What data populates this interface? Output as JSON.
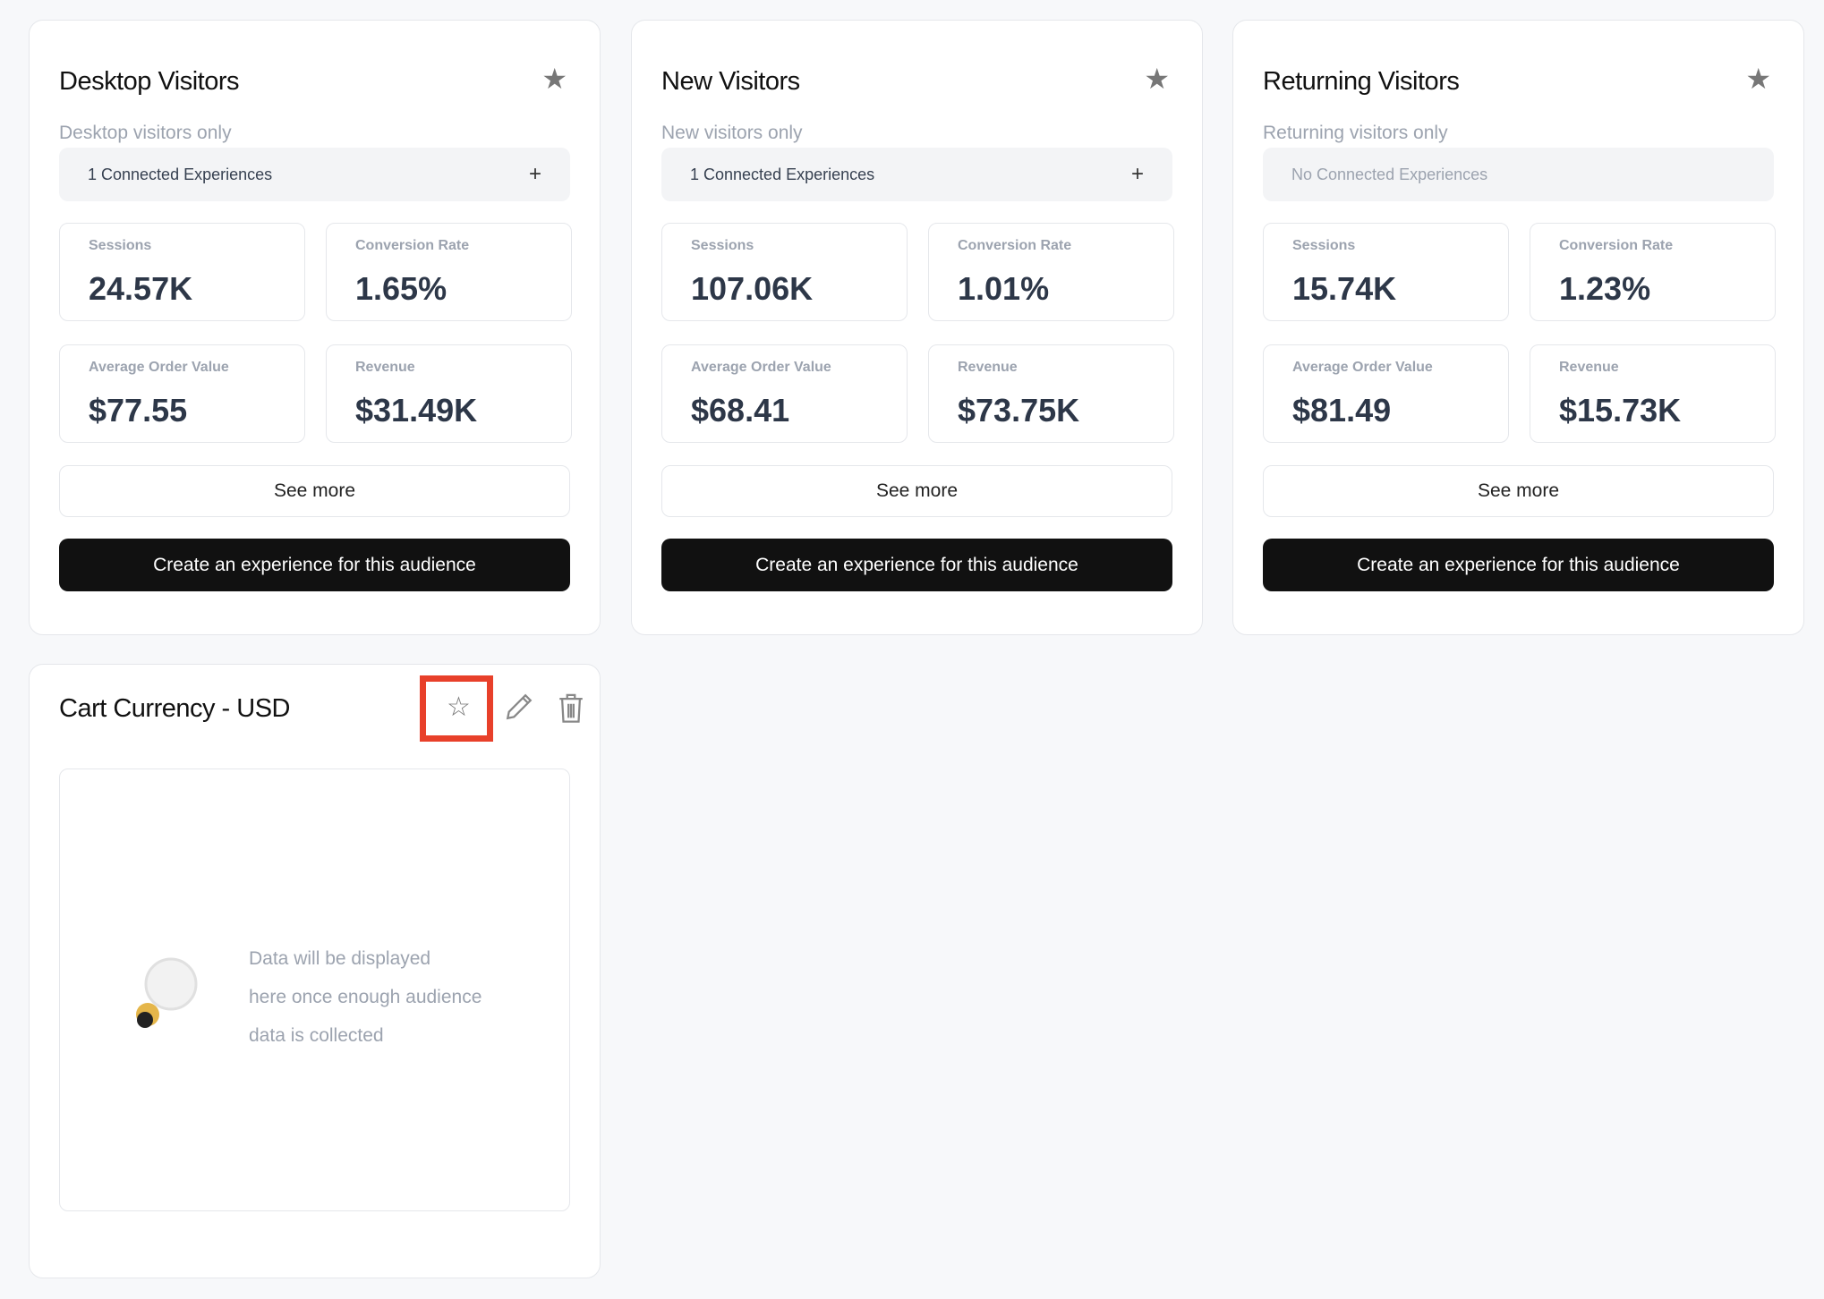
{
  "audiences": [
    {
      "title": "Desktop Visitors",
      "subtitle": "Desktop visitors only",
      "connected": "1 Connected Experiences",
      "has_connected": true,
      "favorite": true,
      "stats": [
        {
          "label": "Sessions",
          "value": "24.57K"
        },
        {
          "label": "Conversion Rate",
          "value": "1.65%"
        },
        {
          "label": "Average Order Value",
          "value": "$77.55"
        },
        {
          "label": "Revenue",
          "value": "$31.49K"
        }
      ],
      "see_more": "See more",
      "create": "Create an experience for this audience"
    },
    {
      "title": "New Visitors",
      "subtitle": "New visitors only",
      "connected": "1 Connected Experiences",
      "has_connected": true,
      "favorite": true,
      "stats": [
        {
          "label": "Sessions",
          "value": "107.06K"
        },
        {
          "label": "Conversion Rate",
          "value": "1.01%"
        },
        {
          "label": "Average Order Value",
          "value": "$68.41"
        },
        {
          "label": "Revenue",
          "value": "$73.75K"
        }
      ],
      "see_more": "See more",
      "create": "Create an experience for this audience"
    },
    {
      "title": "Returning Visitors",
      "subtitle": "Returning visitors only",
      "connected": "No Connected Experiences",
      "has_connected": false,
      "favorite": true,
      "stats": [
        {
          "label": "Sessions",
          "value": "15.74K"
        },
        {
          "label": "Conversion Rate",
          "value": "1.23%"
        },
        {
          "label": "Average Order Value",
          "value": "$81.49"
        },
        {
          "label": "Revenue",
          "value": "$15.73K"
        }
      ],
      "see_more": "See more",
      "create": "Create an experience for this audience"
    }
  ],
  "custom": {
    "title": "Cart Currency - USD",
    "favorite": false,
    "empty_lines": [
      "Data will be displayed",
      "here once enough audience",
      "data is collected"
    ]
  },
  "colors": {
    "highlight": "#e8402a",
    "primary_button": "#111111"
  }
}
